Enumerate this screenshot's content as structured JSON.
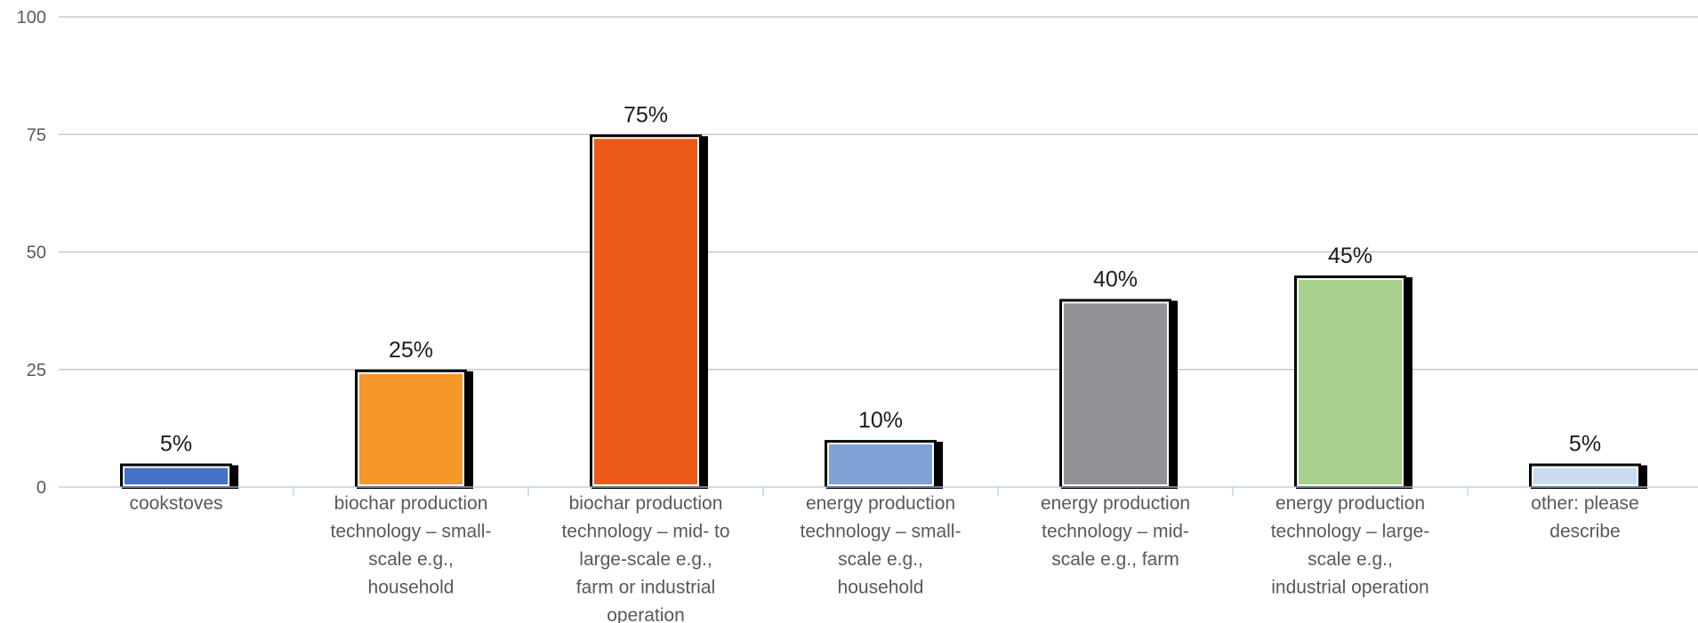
{
  "chart_data": {
    "type": "bar",
    "categories": [
      "cookstoves",
      "biochar production technology – small-scale e.g., household",
      "biochar production technology – mid- to large-scale e.g., farm or industrial operation",
      "energy production technology – small-scale e.g., household",
      "energy production technology – mid-scale e.g., farm",
      "energy production technology – large-scale e.g., industrial operation",
      "other: please describe"
    ],
    "category_label_lines": [
      [
        "cookstoves"
      ],
      [
        "biochar production",
        "technology – small-",
        "scale e.g.,",
        "household"
      ],
      [
        "biochar production",
        "technology – mid- to",
        "large-scale e.g.,",
        "farm or industrial",
        "operation"
      ],
      [
        "energy production",
        "technology – small-",
        "scale e.g.,",
        "household"
      ],
      [
        "energy production",
        "technology – mid-",
        "scale e.g., farm"
      ],
      [
        "energy production",
        "technology – large-",
        "scale e.g.,",
        "industrial operation"
      ],
      [
        "other: please",
        "describe"
      ]
    ],
    "values": [
      5,
      25,
      75,
      10,
      40,
      45,
      5
    ],
    "data_labels": [
      "5%",
      "25%",
      "75%",
      "10%",
      "40%",
      "45%",
      "5%"
    ],
    "bar_colors": [
      "#4472c4",
      "#f5962b",
      "#ec5a16",
      "#7ea3d6",
      "#929396",
      "#a6d08c",
      "#c9dbf0"
    ],
    "title": "",
    "xlabel": "",
    "ylabel": "",
    "ylim": [
      0,
      100
    ],
    "yticks": [
      "0",
      "25",
      "50",
      "75",
      "100"
    ],
    "grid": true,
    "legend": "none"
  }
}
